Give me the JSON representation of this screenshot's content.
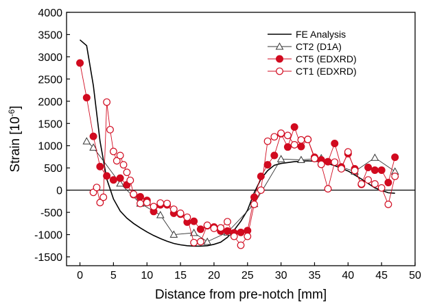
{
  "chart_data": {
    "type": "line",
    "title": "",
    "xlabel": "Distance from pre-notch [mm]",
    "ylabel": "Strain [10",
    "ylabel_sup": "-6",
    "ylabel_close": "]",
    "xlim": [
      -2,
      50
    ],
    "ylim": [
      -1700,
      4000
    ],
    "xticks": [
      0,
      5,
      10,
      15,
      20,
      25,
      30,
      35,
      40,
      45,
      50
    ],
    "yticks": [
      -1500,
      -1000,
      -500,
      0,
      500,
      1000,
      1500,
      2000,
      2500,
      3000,
      3500,
      4000
    ],
    "zero_line": true,
    "grid": false,
    "legend_position": "top-right",
    "colors": {
      "fe": "#000000",
      "ct2": "#333333",
      "ct5": "#d10a1f",
      "ct1": "#d10a1f"
    },
    "series": [
      {
        "name": "FE Analysis",
        "style": "line",
        "x": [
          0,
          1,
          2,
          3,
          4,
          5,
          6,
          7,
          8,
          9,
          10,
          11,
          12,
          13,
          14,
          15,
          16,
          17,
          18,
          19,
          20,
          21,
          22,
          23,
          24,
          25,
          26,
          27,
          28,
          29,
          30,
          32,
          34,
          36,
          38,
          40,
          42,
          44,
          46,
          47
        ],
        "y": [
          3380,
          3250,
          2350,
          1100,
          250,
          -200,
          -470,
          -630,
          -750,
          -850,
          -940,
          -1020,
          -1090,
          -1150,
          -1200,
          -1230,
          -1250,
          -1260,
          -1260,
          -1250,
          -1220,
          -1170,
          -1060,
          -900,
          -700,
          -450,
          -60,
          250,
          440,
          560,
          600,
          640,
          660,
          640,
          550,
          430,
          250,
          50,
          -60,
          -70
        ]
      },
      {
        "name": "CT2 (D1A)",
        "style": "open-triangle",
        "x": [
          1,
          2,
          6,
          9,
          12,
          14,
          17,
          19,
          22,
          26,
          30,
          33,
          36,
          39,
          41,
          44,
          47
        ],
        "y": [
          1100,
          960,
          150,
          -300,
          -560,
          -1000,
          -960,
          -1160,
          -950,
          -310,
          700,
          680,
          720,
          520,
          420,
          730,
          420
        ]
      },
      {
        "name": "CT5 (EDXRD)",
        "style": "filled-circle",
        "x": [
          0,
          1,
          2,
          3,
          4,
          5,
          6,
          7,
          8,
          9,
          10,
          11,
          12,
          13,
          14,
          15,
          16,
          17,
          18,
          19,
          20,
          21,
          22,
          23,
          24,
          25,
          26,
          27,
          28,
          29,
          30,
          31,
          32,
          33,
          34,
          35,
          36,
          37,
          38,
          39,
          40,
          41,
          42,
          43,
          44,
          45,
          46,
          47
        ],
        "y": [
          2860,
          2080,
          1210,
          530,
          320,
          230,
          270,
          120,
          -100,
          -150,
          -230,
          -480,
          -330,
          -330,
          -520,
          -540,
          -720,
          -700,
          -880,
          -800,
          -830,
          -920,
          -920,
          -960,
          -950,
          -910,
          -160,
          310,
          570,
          780,
          1270,
          970,
          1420,
          980,
          1140,
          740,
          680,
          640,
          1050,
          520,
          820,
          480,
          130,
          510,
          450,
          450,
          170,
          740
        ]
      },
      {
        "name": "CT1 (EDXRD)",
        "style": "open-circle",
        "x": [
          2,
          2.5,
          3,
          3.5,
          4,
          4.5,
          5,
          5.5,
          6,
          6.5,
          7,
          7.5,
          8,
          9,
          10,
          11,
          12,
          13,
          14,
          15,
          16,
          17,
          18,
          19,
          20,
          21,
          22,
          23,
          24,
          25,
          26,
          27,
          28,
          29,
          30,
          31,
          32,
          33,
          34,
          35,
          36,
          37,
          38,
          39,
          40,
          41,
          42,
          43,
          44,
          45,
          46,
          47
        ],
        "y": [
          -50,
          60,
          -280,
          -160,
          1980,
          1360,
          870,
          660,
          780,
          570,
          400,
          220,
          -90,
          -300,
          -280,
          -370,
          -290,
          -300,
          -430,
          -520,
          -610,
          -1180,
          -1160,
          -790,
          -860,
          -850,
          -710,
          -1040,
          -1240,
          -1040,
          -320,
          0,
          1100,
          1200,
          1280,
          1230,
          1020,
          1130,
          1140,
          710,
          580,
          30,
          630,
          480,
          860,
          440,
          140,
          230,
          140,
          50,
          -320,
          310
        ]
      }
    ]
  }
}
